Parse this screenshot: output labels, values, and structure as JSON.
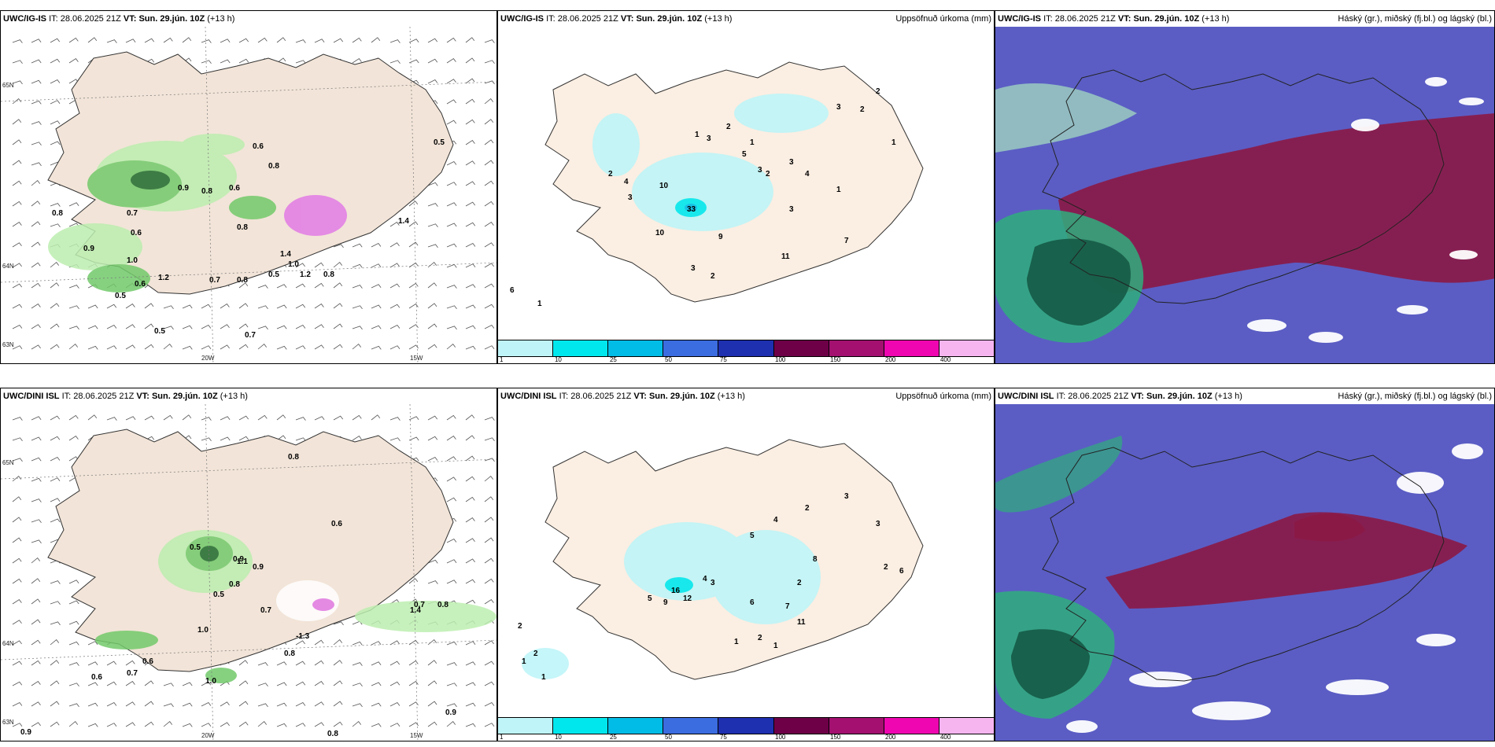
{
  "rows": [
    {
      "model": "UWC/IG-IS",
      "it_label": "IT:",
      "it_value": "28.06.2025 21Z",
      "vt_label": "VT:",
      "vt_value": "Sun. 29.jún. 10Z",
      "lead": "(+13 h)",
      "wind_values": [
        "0.8",
        "0.9",
        "0.5",
        "0.6",
        "0.7",
        "0.9",
        "0.8",
        "0.6",
        "0.8",
        "0.6",
        "1.0",
        "1.2",
        "0.7",
        "0.8",
        "0.5",
        "1.4",
        "1.0",
        "1.2",
        "0.8",
        "0.7",
        "0.5",
        "0.6",
        "0.8",
        "0.5",
        "1.4"
      ],
      "precip_values": [
        "6",
        "1",
        "2",
        "3",
        "10",
        "33",
        "9",
        "10",
        "4",
        "3",
        "2",
        "1",
        "3",
        "2",
        "5",
        "1",
        "3",
        "2",
        "3",
        "4",
        "7",
        "11",
        "3",
        "1",
        "2",
        "2",
        "1",
        "3"
      ]
    },
    {
      "model": "UWC/DINI ISL",
      "it_label": "IT:",
      "it_value": "28.06.2025 21Z",
      "vt_label": "VT:",
      "vt_value": "Sun. 29.jún. 10Z",
      "lead": "(+13 h)",
      "wind_values": [
        "0.8",
        "0.6",
        "0.9",
        "0.5",
        "1.1",
        "0.9",
        "0.8",
        "0.5",
        "1.0",
        "0.7",
        "-1.3",
        "0.8",
        "0.6",
        "0.7",
        "1.0",
        "1.4",
        "0.7",
        "0.8",
        "0.9",
        "0.8",
        "0.6",
        "0.9"
      ],
      "precip_values": [
        "2",
        "1",
        "2",
        "1",
        "16",
        "9",
        "12",
        "5",
        "4",
        "3",
        "6",
        "7",
        "11",
        "2",
        "1",
        "3",
        "2",
        "4",
        "5",
        "3",
        "2",
        "6",
        "8",
        "2",
        "1"
      ]
    }
  ],
  "precip_title": "Uppsöfnuð úrkoma (mm)",
  "cloud_title": "Háský (gr.), miðský (fj.bl.) og lágský (bl.)",
  "colorbar": {
    "ticks": [
      "1",
      "10",
      "25",
      "50",
      "75",
      "100",
      "150",
      "200",
      "400"
    ],
    "colors": [
      "#bff5f8",
      "#00e8ee",
      "#00bce6",
      "#3b6ce0",
      "#1e2fb0",
      "#6d0047",
      "#a3106f",
      "#f006b0",
      "#f7b5f0"
    ]
  },
  "axis_labels": {
    "lat_65": "65N",
    "lat_64": "64N",
    "lat_63": "63N",
    "lon_20": "20W",
    "lon_15": "15W"
  },
  "colors": {
    "land": "#f2e4d8",
    "sea": "#ffffff",
    "wind_green_light": "#bdeeb0",
    "wind_green_mid": "#72c96a",
    "wind_green_dark": "#1f6a2c",
    "pink": "#e27be6",
    "cloud_blue": "#5b5dc4",
    "cloud_maroon": "#8b1845",
    "cloud_green": "#2fae7c"
  }
}
